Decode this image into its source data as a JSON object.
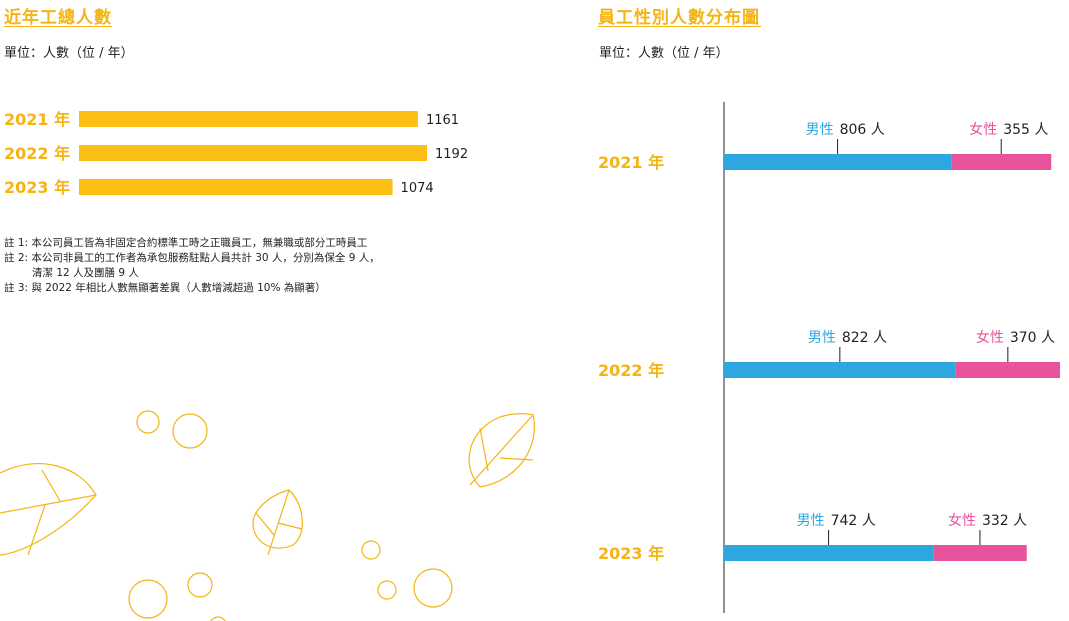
{
  "left": {
    "title": "近年工總人數",
    "unit": "單位：人數（位 / 年）",
    "notes": [
      "註 1: 本公司員工皆為非固定合約標準工時之正職員工，無兼職或部分工時員工",
      "註 2: 本公司非員工的工作者為承包服務駐點人員共計 30 人，分別為保全 9 人，",
      "清潔 12 人及團膳 9 人",
      "註 3: 與 2022 年相比人數無顯著差異（人數增減超過 10% 為顯著）"
    ]
  },
  "right": {
    "title": "員工性別人數分布圖",
    "unit": "單位：人數（位 / 年）"
  },
  "colors": {
    "accent": "#f5b414",
    "bar": "#fbbf16",
    "male": "#2ea7e0",
    "female": "#e8549b"
  },
  "chart_data": [
    {
      "type": "bar",
      "orientation": "horizontal",
      "title": "近年工總人數",
      "categories": [
        "2021 年",
        "2022 年",
        "2023 年"
      ],
      "values": [
        1161,
        1192,
        1074
      ]
    },
    {
      "type": "bar",
      "orientation": "horizontal",
      "stacked": true,
      "title": "員工性別人數分布圖",
      "categories": [
        "2021 年",
        "2022 年",
        "2023 年"
      ],
      "series": [
        {
          "name": "男性",
          "values": [
            806,
            822,
            742
          ],
          "value_labels": [
            "806 人",
            "822 人",
            "742 人"
          ]
        },
        {
          "name": "女性",
          "values": [
            355,
            370,
            332
          ],
          "value_labels": [
            "355 人",
            "370 人",
            "332 人"
          ]
        }
      ]
    }
  ]
}
